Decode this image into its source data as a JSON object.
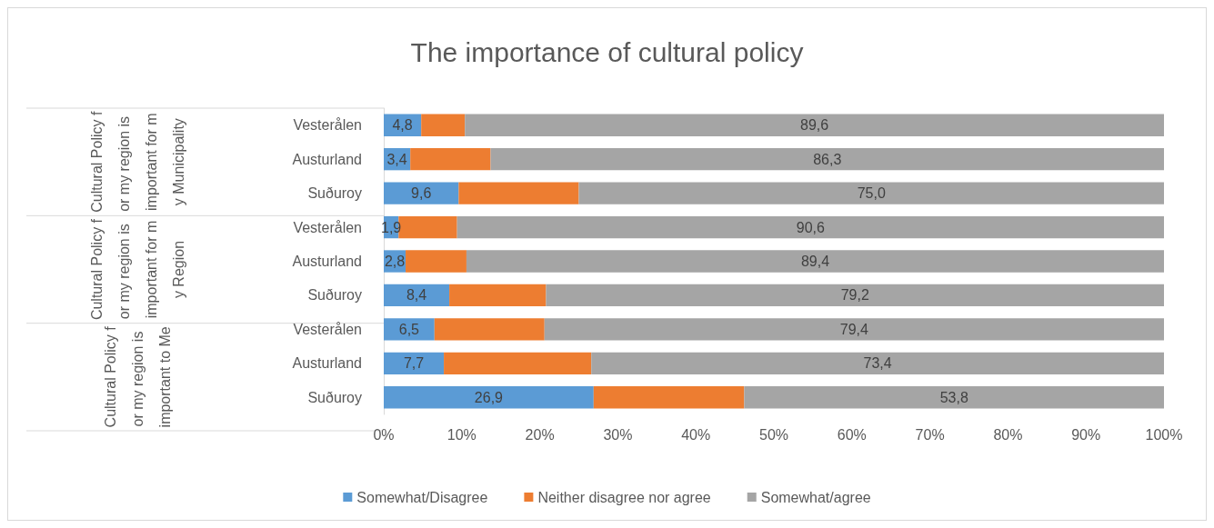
{
  "chart_data": {
    "type": "bar",
    "orientation": "horizontal",
    "stacked": true,
    "title": "The importance of cultural policy",
    "categories": [
      "Vesterålen",
      "Austurland",
      "Suðuroy",
      "Vesterålen",
      "Austurland",
      "Suðuroy",
      "Vesterålen",
      "Austurland",
      "Suðuroy"
    ],
    "annotations": [
      "Cultural Policy for my region is important for my Municipality",
      "Cultural Policy for my region is important for my Region",
      "Cultural Policy for my region is important to Me"
    ],
    "series": [
      {
        "name": "Somewhat/Disagree",
        "color": "#5b9bd5",
        "values": [
          4.8,
          3.4,
          9.6,
          1.9,
          2.8,
          8.4,
          6.5,
          7.7,
          26.9
        ],
        "value_labels": [
          "4,8",
          "3,4",
          "9,6",
          "1,9",
          "2,8",
          "8,4",
          "6,5",
          "7,7",
          "26,9"
        ]
      },
      {
        "name": "Neither disagree nor agree",
        "color": "#ed7d31",
        "values": [
          5.6,
          10.3,
          15.4,
          7.5,
          7.8,
          12.4,
          14.1,
          18.9,
          19.3
        ]
      },
      {
        "name": "Somewhat/agree",
        "color": "#a5a5a5",
        "values": [
          89.6,
          86.3,
          75.0,
          90.6,
          89.4,
          79.2,
          79.4,
          73.4,
          53.8
        ],
        "value_labels": [
          "89,6",
          "86,3",
          "75,0",
          "90,6",
          "89,4",
          "79,2",
          "79,4",
          "73,4",
          "53,8"
        ]
      }
    ],
    "xlim": [
      0,
      100
    ],
    "xticks": [
      {
        "value": 0,
        "label": "0%"
      },
      {
        "value": 10,
        "label": "10%"
      },
      {
        "value": 20,
        "label": "20%"
      },
      {
        "value": 30,
        "label": "30%"
      },
      {
        "value": 40,
        "label": "40%"
      },
      {
        "value": 50,
        "label": "50%"
      },
      {
        "value": 60,
        "label": "60%"
      },
      {
        "value": 70,
        "label": "70%"
      },
      {
        "value": 80,
        "label": "80%"
      },
      {
        "value": 90,
        "label": "90%"
      },
      {
        "value": 100,
        "label": "100%"
      }
    ],
    "grid": false,
    "legend": "bottom"
  }
}
